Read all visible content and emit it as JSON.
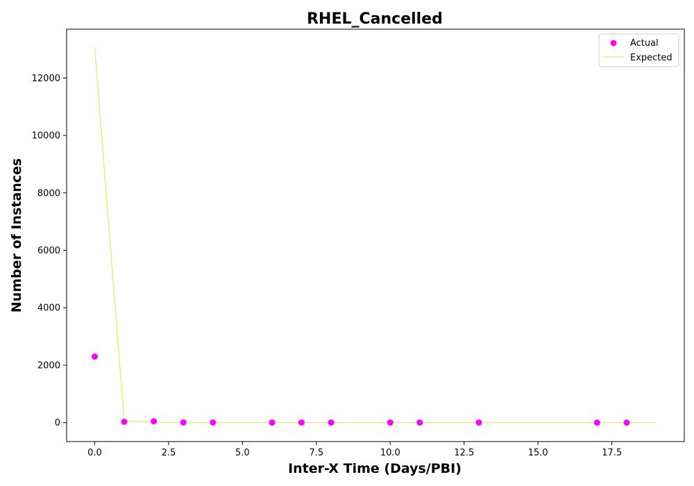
{
  "chart_data": {
    "type": "scatter",
    "title": "RHEL_Cancelled",
    "xlabel": "Inter-X Time (Days/PBI)",
    "ylabel": "Number of Instances",
    "xlim": [
      -0.95,
      19.95
    ],
    "ylim": [
      -660,
      13700
    ],
    "xticks": [
      0.0,
      2.5,
      5.0,
      7.5,
      10.0,
      12.5,
      15.0,
      17.5
    ],
    "xtick_labels": [
      "0.0",
      "2.5",
      "5.0",
      "7.5",
      "10.0",
      "12.5",
      "15.0",
      "17.5"
    ],
    "yticks": [
      0,
      2000,
      4000,
      6000,
      8000,
      10000,
      12000
    ],
    "ytick_labels": [
      "0",
      "2000",
      "4000",
      "6000",
      "8000",
      "10000",
      "12000"
    ],
    "grid": false,
    "legend": "top-right",
    "series": [
      {
        "name": "Actual",
        "kind": "scatter",
        "color": "#ff00ff",
        "x": [
          0,
          1,
          2,
          3,
          4,
          6,
          7,
          8,
          10,
          11,
          13,
          17,
          18
        ],
        "y": [
          2300,
          30,
          45,
          5,
          5,
          3,
          3,
          3,
          2,
          2,
          2,
          1,
          1
        ]
      },
      {
        "name": "Expected",
        "kind": "line",
        "color": "#f0e68c",
        "x": [
          0,
          1,
          2,
          3,
          4,
          5,
          6,
          7,
          8,
          9,
          10,
          11,
          12,
          13,
          14,
          15,
          16,
          17,
          18,
          19
        ],
        "y": [
          13050,
          60,
          10,
          2,
          1,
          0.5,
          0.3,
          0.2,
          0.1,
          0.1,
          0.1,
          0,
          0,
          0,
          0,
          0,
          0,
          0,
          0,
          0
        ]
      }
    ]
  }
}
